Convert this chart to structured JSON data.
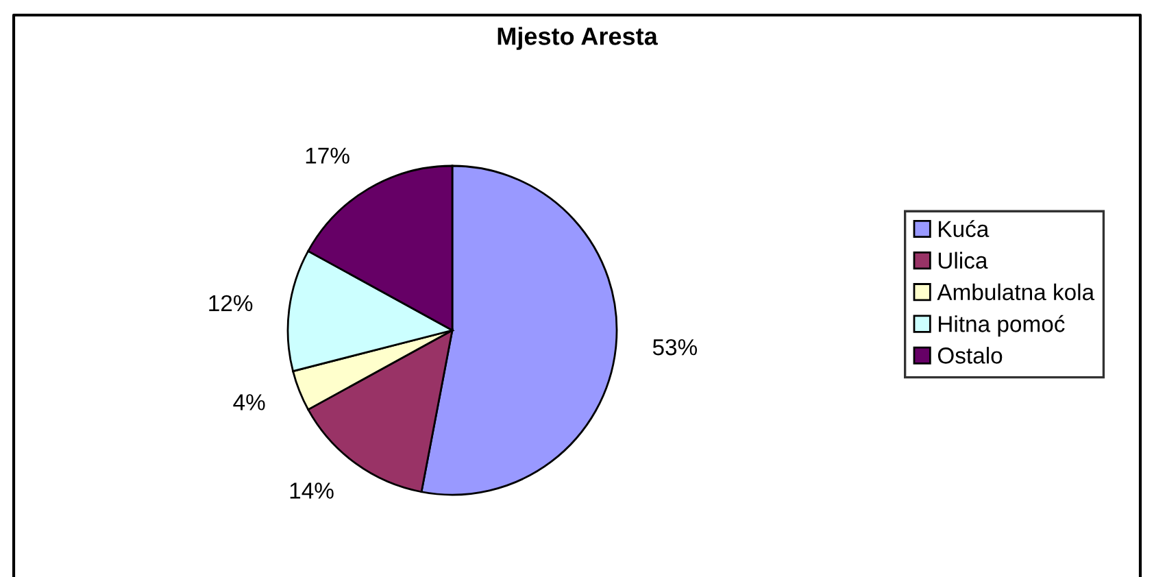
{
  "chart_data": {
    "type": "pie",
    "title": "Mjesto Aresta",
    "categories": [
      "Kuća",
      "Ulica",
      "Ambulatna kola",
      "Hitna pomoć",
      "Ostalo"
    ],
    "values": [
      53,
      14,
      4,
      12,
      17
    ],
    "value_labels": [
      "53%",
      "14%",
      "4%",
      "12%",
      "17%"
    ],
    "colors": [
      "#9999ff",
      "#993366",
      "#ffffcc",
      "#ccffff",
      "#660066"
    ],
    "legend": "right"
  }
}
